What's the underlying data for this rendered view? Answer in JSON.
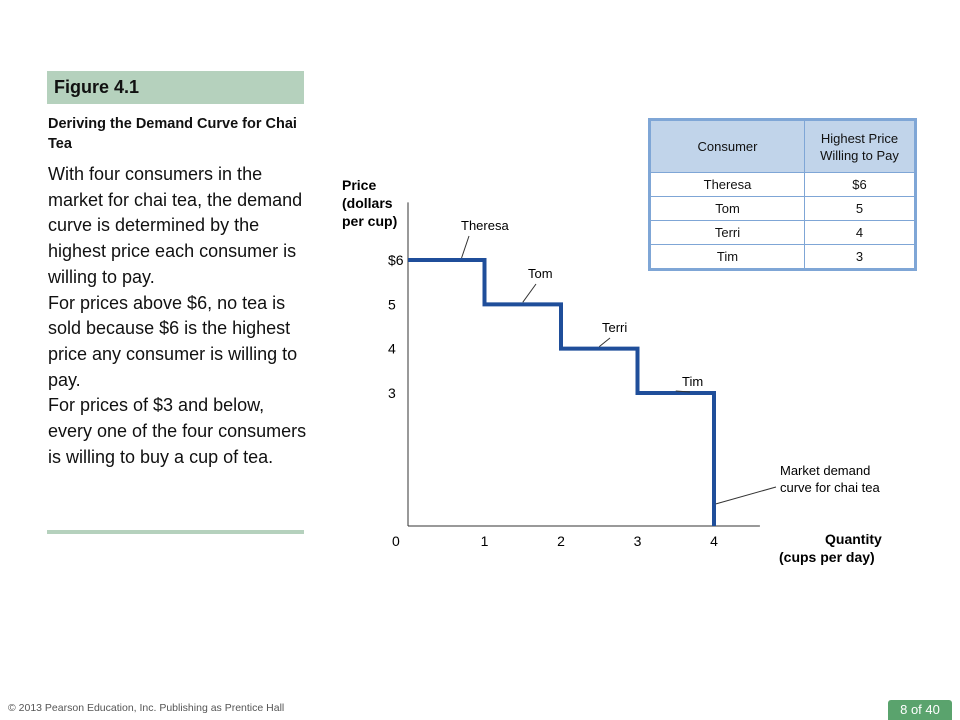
{
  "figure": {
    "label": "Figure 4.1",
    "subtitle": "Deriving the Demand Curve for Chai Tea",
    "paragraphs": [
      "With four consumers in the market for chai tea, the demand curve is determined by the highest price each consumer is willing to pay.",
      "For prices above $6, no tea is sold because $6 is the highest price any consumer is willing to pay.",
      "For prices of $3 and below, every one of the four consumers is willing to buy a cup of tea."
    ]
  },
  "chart_data": {
    "type": "line",
    "step": true,
    "ylabel_lines": [
      "Price",
      "(dollars",
      "per cup)"
    ],
    "xlabel_lines": [
      "Quantity",
      "(cups per day)"
    ],
    "origin_label": "0",
    "y_ticks": [
      {
        "value": 6,
        "label": "$6"
      },
      {
        "value": 5,
        "label": "5"
      },
      {
        "value": 4,
        "label": "4"
      },
      {
        "value": 3,
        "label": "3"
      }
    ],
    "x_ticks": [
      {
        "value": 1,
        "label": "1"
      },
      {
        "value": 2,
        "label": "2"
      },
      {
        "value": 3,
        "label": "3"
      },
      {
        "value": 4,
        "label": "4"
      }
    ],
    "xlim": [
      0,
      4.6
    ],
    "ylim": [
      0,
      7.3
    ],
    "grid": false,
    "line_color": "#1f4e9a",
    "step_points": [
      {
        "x": 0,
        "y": 6
      },
      {
        "x": 1,
        "y": 6
      },
      {
        "x": 1,
        "y": 5
      },
      {
        "x": 2,
        "y": 5
      },
      {
        "x": 2,
        "y": 4
      },
      {
        "x": 3,
        "y": 4
      },
      {
        "x": 3,
        "y": 3
      },
      {
        "x": 4,
        "y": 3
      },
      {
        "x": 4,
        "y": 0
      }
    ],
    "annotations": [
      {
        "text": "Theresa",
        "x": 0.7,
        "y": 6
      },
      {
        "text": "Tom",
        "x": 1.5,
        "y": 5
      },
      {
        "text": "Terri",
        "x": 2.5,
        "y": 4
      },
      {
        "text": "Tim",
        "x": 3.5,
        "y": 3
      },
      {
        "text": "Market demand",
        "text2": "curve for chai tea",
        "x": 4,
        "y": 0.5
      }
    ]
  },
  "table": {
    "headers": [
      "Consumer",
      "Highest Price Willing to Pay"
    ],
    "rows": [
      {
        "consumer": "Theresa",
        "price": "$6"
      },
      {
        "consumer": "Tom",
        "price": "5"
      },
      {
        "consumer": "Terri",
        "price": "4"
      },
      {
        "consumer": "Tim",
        "price": "3"
      }
    ]
  },
  "footer": {
    "copyright": "© 2013 Pearson Education, Inc. Publishing as Prentice Hall",
    "page": "8 of 40"
  },
  "colors": {
    "header_band": "#b5d1bd",
    "table_border": "#7fa6d6",
    "table_header_bg": "#c1d4ea",
    "page_badge": "#5aa36d"
  }
}
